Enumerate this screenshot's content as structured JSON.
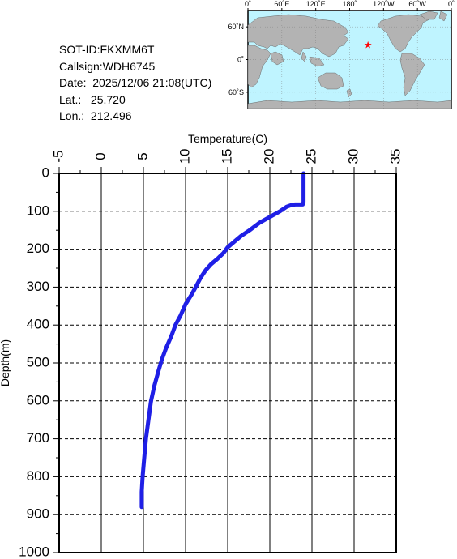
{
  "info": {
    "sot_id": "SOT-ID:FKXMM6T",
    "callsign": "Callsign:WDH6745",
    "date": "Date:  2025/12/06 21:08(UTC)",
    "lat": "Lat.:   25.720",
    "lon": "Lon.:  212.496"
  },
  "map": {
    "top_labels": [
      "0˚",
      "60˚E",
      "120˚E",
      "180˚",
      "120˚W",
      "60˚W",
      "0˚"
    ],
    "side_labels": [
      "60˚N",
      "0˚",
      "60˚S"
    ],
    "ocean_color": "#bff4ff",
    "land_color": "#b3b3b3",
    "marker_color": "#ff0000",
    "marker": {
      "lat": 25.72,
      "lon": 212.496
    }
  },
  "chart_data": {
    "type": "line",
    "xlabel": "Temperature(C)",
    "ylabel": "Depth(m)",
    "xlim": [
      -5,
      35
    ],
    "ylim": [
      0,
      1000
    ],
    "y_inverted": true,
    "x_ticks": [
      "-5",
      "0",
      "5",
      "10",
      "15",
      "20",
      "25",
      "30",
      "35"
    ],
    "y_ticks": [
      "0",
      "100",
      "200",
      "300",
      "400",
      "500",
      "600",
      "700",
      "800",
      "900",
      "1000"
    ],
    "grid": true,
    "series": [
      {
        "color": "#1f1fe6",
        "points": [
          [
            24.0,
            0
          ],
          [
            24.0,
            20
          ],
          [
            24.0,
            50
          ],
          [
            24.0,
            75
          ],
          [
            23.9,
            82
          ],
          [
            23.0,
            82
          ],
          [
            22.5,
            84
          ],
          [
            22.0,
            88
          ],
          [
            21.2,
            100
          ],
          [
            20.0,
            115
          ],
          [
            18.8,
            130
          ],
          [
            17.6,
            150
          ],
          [
            16.6,
            165
          ],
          [
            15.8,
            180
          ],
          [
            15.0,
            195
          ],
          [
            14.5,
            210
          ],
          [
            13.8,
            225
          ],
          [
            13.0,
            240
          ],
          [
            12.4,
            255
          ],
          [
            11.8,
            275
          ],
          [
            11.2,
            300
          ],
          [
            10.7,
            320
          ],
          [
            10.0,
            345
          ],
          [
            9.4,
            375
          ],
          [
            8.8,
            400
          ],
          [
            8.3,
            430
          ],
          [
            7.7,
            460
          ],
          [
            7.2,
            490
          ],
          [
            6.8,
            520
          ],
          [
            6.3,
            560
          ],
          [
            5.9,
            600
          ],
          [
            5.6,
            650
          ],
          [
            5.3,
            700
          ],
          [
            5.1,
            750
          ],
          [
            4.9,
            800
          ],
          [
            4.8,
            840
          ],
          [
            4.8,
            880
          ]
        ]
      }
    ]
  }
}
